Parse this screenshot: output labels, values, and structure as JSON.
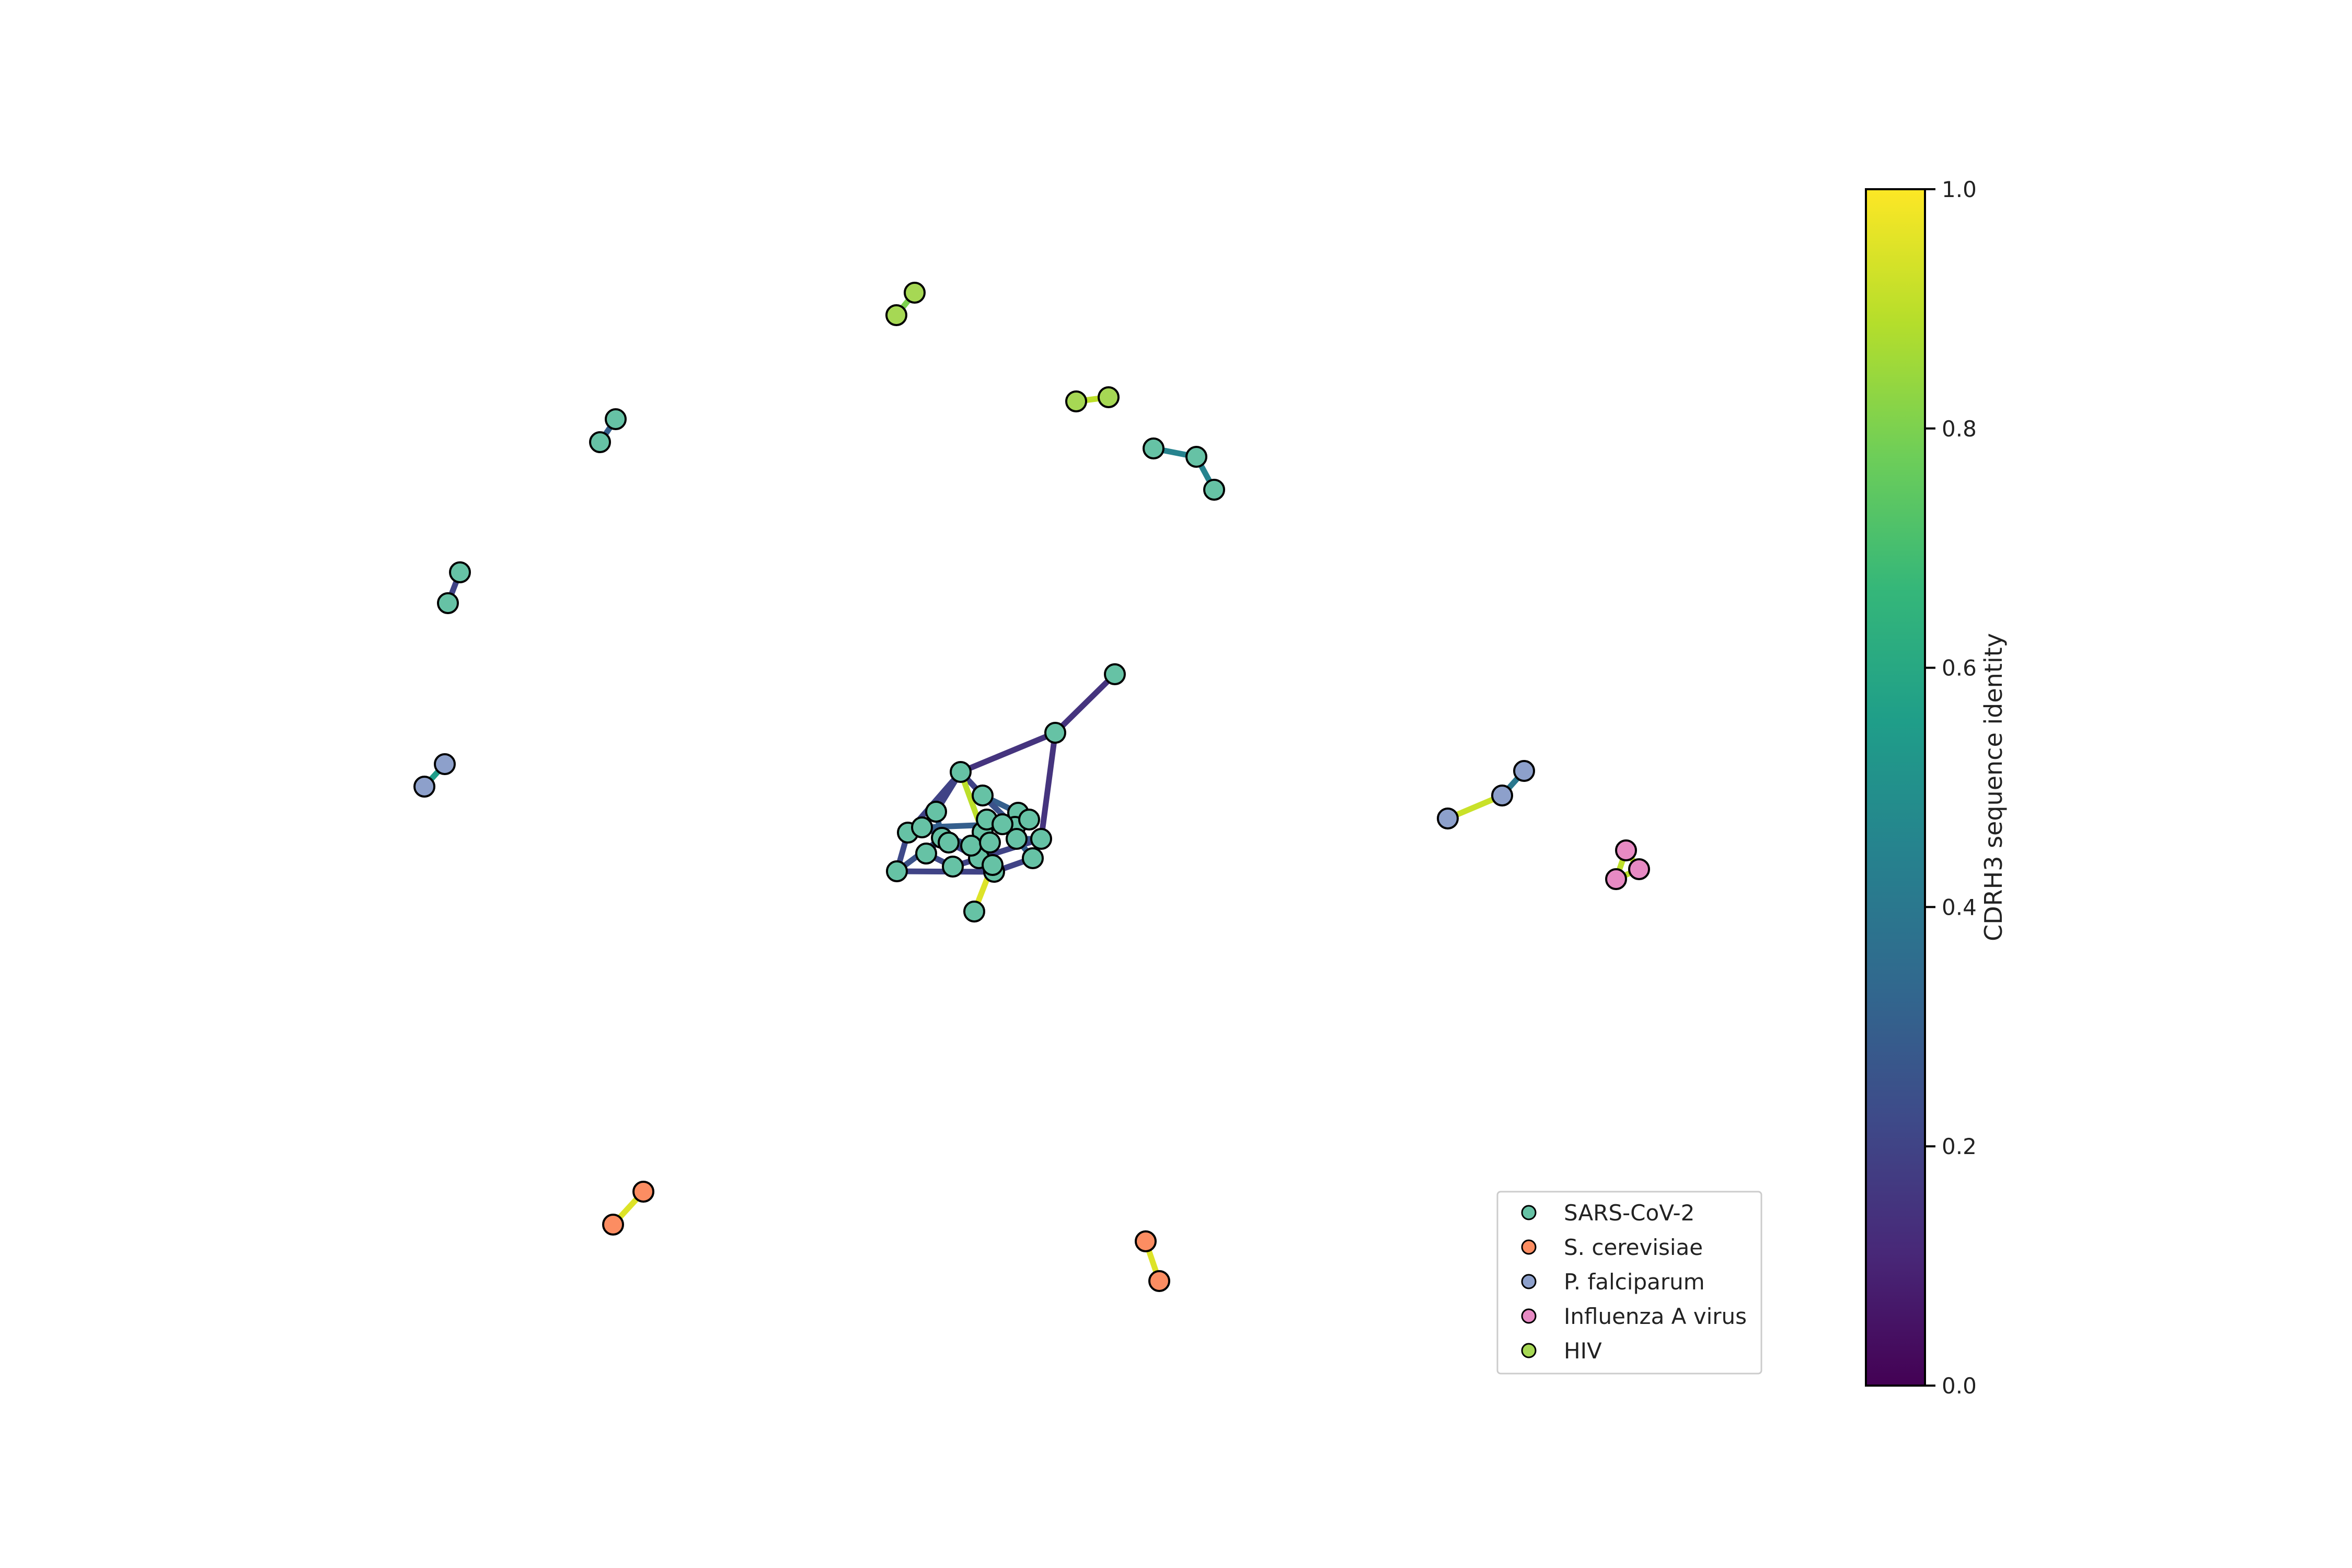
{
  "legend": {
    "entries": [
      {
        "label": "SARS-CoV-2",
        "color": "#66c2a5"
      },
      {
        "label": "S. cerevisiae",
        "color": "#fc8d62"
      },
      {
        "label": "P. falciparum",
        "color": "#8da0cb"
      },
      {
        "label": "Influenza A virus",
        "color": "#e78ac3"
      },
      {
        "label": "HIV",
        "color": "#a6d854"
      }
    ]
  },
  "colorbar": {
    "label": "CDRH3 sequence identity",
    "min": 0.0,
    "max": 1.0,
    "ticks": [
      "0.0",
      "0.2",
      "0.4",
      "0.6",
      "0.8",
      "1.0"
    ],
    "colormap": "viridis",
    "stops": [
      "#440154",
      "#482878",
      "#3e4a89",
      "#31688e",
      "#26828e",
      "#1f9e89",
      "#35b779",
      "#6ece58",
      "#b5de2b",
      "#fde725"
    ]
  },
  "nodes": [
    {
      "id": 0,
      "group": 0
    },
    {
      "id": 1,
      "group": 0
    },
    {
      "id": 2,
      "group": 0
    },
    {
      "id": 3,
      "group": 0
    },
    {
      "id": 4,
      "group": 0
    },
    {
      "id": 5,
      "group": 0
    },
    {
      "id": 6,
      "group": 0
    },
    {
      "id": 7,
      "group": 0
    },
    {
      "id": 8,
      "group": 0
    },
    {
      "id": 9,
      "group": 0
    },
    {
      "id": 10,
      "group": 0
    },
    {
      "id": 11,
      "group": 0
    },
    {
      "id": 12,
      "group": 0
    },
    {
      "id": 13,
      "group": 0
    },
    {
      "id": 14,
      "group": 0
    },
    {
      "id": 15,
      "group": 0
    },
    {
      "id": 16,
      "group": 0
    },
    {
      "id": 17,
      "group": 0
    },
    {
      "id": 18,
      "group": 0
    },
    {
      "id": 19,
      "group": 0
    },
    {
      "id": 20,
      "group": 0
    },
    {
      "id": 21,
      "group": 0
    },
    {
      "id": 22,
      "group": 0
    },
    {
      "id": 23,
      "group": 0
    },
    {
      "id": 24,
      "group": 0
    },
    {
      "id": 25,
      "group": 0
    },
    {
      "id": 26,
      "group": 0
    },
    {
      "id": 27,
      "group": 0
    },
    {
      "id": 28,
      "group": 0
    },
    {
      "id": 29,
      "group": 0
    },
    {
      "id": 30,
      "group": 0
    },
    {
      "id": 31,
      "group": 0
    },
    {
      "id": 32,
      "group": 0
    },
    {
      "id": 33,
      "group": 0
    },
    {
      "id": 34,
      "group": 4
    },
    {
      "id": 35,
      "group": 4
    },
    {
      "id": 36,
      "group": 4
    },
    {
      "id": 37,
      "group": 4
    },
    {
      "id": 38,
      "group": 2
    },
    {
      "id": 39,
      "group": 2
    },
    {
      "id": 40,
      "group": 2
    },
    {
      "id": 41,
      "group": 2
    },
    {
      "id": 42,
      "group": 2
    },
    {
      "id": 43,
      "group": 3
    },
    {
      "id": 44,
      "group": 3
    },
    {
      "id": 45,
      "group": 3
    },
    {
      "id": 46,
      "group": 1
    },
    {
      "id": 47,
      "group": 1
    },
    {
      "id": 48,
      "group": 1
    },
    {
      "id": 49,
      "group": 1
    }
  ],
  "edges": [
    {
      "s": 0,
      "t": 1,
      "w": 0.15
    },
    {
      "s": 1,
      "t": 2,
      "w": 0.15
    },
    {
      "s": 1,
      "t": 17,
      "w": 0.15
    },
    {
      "s": 2,
      "t": 6,
      "w": 0.2
    },
    {
      "s": 2,
      "t": 9,
      "w": 0.2
    },
    {
      "s": 2,
      "t": 4,
      "w": 0.2
    },
    {
      "s": 4,
      "t": 7,
      "w": 0.3
    },
    {
      "s": 4,
      "t": 8,
      "w": 0.25
    },
    {
      "s": 3,
      "t": 5,
      "w": 0.25
    },
    {
      "s": 5,
      "t": 13,
      "w": 0.2
    },
    {
      "s": 6,
      "t": 12,
      "w": 0.3
    },
    {
      "s": 12,
      "t": 11,
      "w": 0.2
    },
    {
      "s": 11,
      "t": 14,
      "w": 0.22
    },
    {
      "s": 14,
      "t": 17,
      "w": 0.2
    },
    {
      "s": 17,
      "t": 18,
      "w": 0.25
    },
    {
      "s": 18,
      "t": 16,
      "w": 0.3
    },
    {
      "s": 15,
      "t": 16,
      "w": 0.2
    },
    {
      "s": 10,
      "t": 15,
      "w": 0.2
    },
    {
      "s": 10,
      "t": 12,
      "w": 0.25
    },
    {
      "s": 20,
      "t": 24,
      "w": 0.6
    },
    {
      "s": 24,
      "t": 25,
      "w": 0.2
    },
    {
      "s": 25,
      "t": 26,
      "w": 0.95
    },
    {
      "s": 21,
      "t": 25,
      "w": 0.18
    },
    {
      "s": 23,
      "t": 20,
      "w": 0.25
    },
    {
      "s": 22,
      "t": 23,
      "w": 0.3
    },
    {
      "s": 7,
      "t": 19,
      "w": 0.35
    },
    {
      "s": 19,
      "t": 22,
      "w": 0.3
    },
    {
      "s": 2,
      "t": 3,
      "w": 0.9
    },
    {
      "s": 8,
      "t": 19,
      "w": 0.2
    },
    {
      "s": 9,
      "t": 10,
      "w": 0.22
    },
    {
      "s": 13,
      "t": 21,
      "w": 0.25
    },
    {
      "s": 16,
      "t": 18,
      "w": 0.3
    },
    {
      "s": 27,
      "t": 28,
      "w": 0.3
    },
    {
      "s": 29,
      "t": 30,
      "w": 0.2
    },
    {
      "s": 31,
      "t": 32,
      "w": 0.45
    },
    {
      "s": 32,
      "t": 33,
      "w": 0.45
    },
    {
      "s": 34,
      "t": 35,
      "w": 0.8
    },
    {
      "s": 36,
      "t": 37,
      "w": 0.9
    },
    {
      "s": 38,
      "t": 39,
      "w": 0.55
    },
    {
      "s": 40,
      "t": 41,
      "w": 0.4
    },
    {
      "s": 41,
      "t": 42,
      "w": 0.92
    },
    {
      "s": 43,
      "t": 44,
      "w": 0.9
    },
    {
      "s": 44,
      "t": 45,
      "w": 0.9
    },
    {
      "s": 43,
      "t": 45,
      "w": 0.9
    },
    {
      "s": 46,
      "t": 47,
      "w": 0.95
    },
    {
      "s": 48,
      "t": 49,
      "w": 0.95
    }
  ]
}
